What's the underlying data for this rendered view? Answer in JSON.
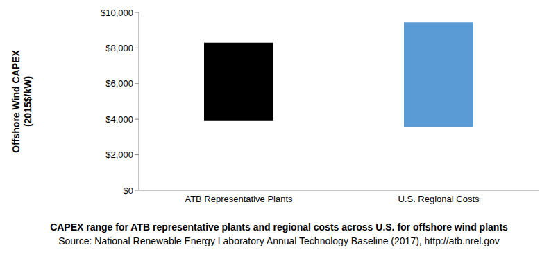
{
  "chart_data": {
    "type": "bar",
    "title": "CAPEX range for ATB representative plants and regional costs across U.S. for offshore wind plants",
    "source": "Source: National Renewable Energy Laboratory Annual Technology Baseline (2017), http://atb.nrel.gov",
    "y_label": [
      "Offshore Wind CAPEX",
      "(2015$/kW)"
    ],
    "categories": [
      "ATB Representative Plants",
      "U.S. Regional Costs"
    ],
    "values": [
      [
        3900,
        8300
      ],
      [
        3550,
        9450
      ]
    ],
    "colors": [
      "#000000",
      "#5b9bd5"
    ],
    "ylim": [
      0,
      10000
    ],
    "yticks": [
      {
        "value": 0,
        "label": "$0"
      },
      {
        "value": 2000,
        "label": "$2,000"
      },
      {
        "value": 4000,
        "label": "$4,000"
      },
      {
        "value": 6000,
        "label": "$6,000"
      },
      {
        "value": 8000,
        "label": "$8,000"
      },
      {
        "value": 10000,
        "label": "$10,000"
      }
    ],
    "grid": false
  }
}
